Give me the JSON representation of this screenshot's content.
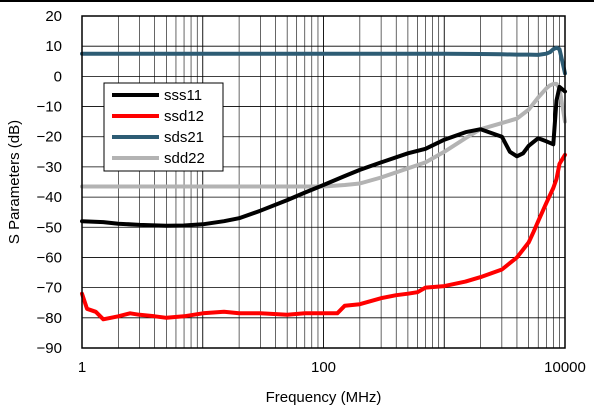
{
  "chart_data": {
    "type": "line",
    "xlabel": "Frequency (MHz)",
    "ylabel": "S Parameters (dB)",
    "xscale": "log",
    "xlim": [
      1,
      10000
    ],
    "ylim": [
      -90,
      20
    ],
    "x_ticks": [
      1,
      100,
      10000
    ],
    "x_tick_labels": [
      "1",
      "100",
      "10000"
    ],
    "y_ticks": [
      20,
      10,
      0,
      -10,
      -20,
      -30,
      -40,
      -50,
      -60,
      -70,
      -80,
      -90
    ],
    "y_tick_labels": [
      "20",
      "10",
      "0",
      "−10",
      "−20",
      "−30",
      "−40",
      "−50",
      "−60",
      "−70",
      "−80",
      "−90"
    ],
    "grid": true,
    "legend_position": "upper-left",
    "series": [
      {
        "name": "sss11",
        "color": "#000000",
        "x": [
          1,
          1.5,
          2,
          3,
          5,
          7,
          10,
          15,
          20,
          30,
          50,
          70,
          100,
          150,
          200,
          300,
          500,
          700,
          1000,
          1500,
          2000,
          3000,
          3500,
          4000,
          4500,
          5000,
          6000,
          7000,
          8000,
          8500,
          9000,
          10000
        ],
        "values": [
          -48,
          -48.3,
          -48.8,
          -49.2,
          -49.5,
          -49.4,
          -49,
          -48,
          -47,
          -44.5,
          -41,
          -38.5,
          -36,
          -33,
          -31,
          -28.5,
          -25.5,
          -24,
          -21,
          -18.5,
          -17.5,
          -20,
          -25,
          -26.5,
          -25.5,
          -23,
          -20.5,
          -21.5,
          -22.5,
          -8,
          -3.5,
          -5
        ]
      },
      {
        "name": "ssd12",
        "color": "#ff0000",
        "x": [
          1,
          1.1,
          1.3,
          1.5,
          2,
          2.5,
          3,
          4,
          5,
          7,
          10,
          15,
          20,
          30,
          50,
          70,
          100,
          130,
          150,
          200,
          300,
          400,
          500,
          600,
          700,
          1000,
          1500,
          2000,
          3000,
          4000,
          5000,
          5500,
          6000,
          7000,
          8000,
          8500,
          9000,
          10000
        ],
        "values": [
          -72,
          -77,
          -78,
          -80.5,
          -79.5,
          -78.5,
          -79,
          -79.5,
          -80,
          -79.5,
          -78.5,
          -78,
          -78.5,
          -78.5,
          -79,
          -78.5,
          -78.5,
          -78.5,
          -76,
          -75.5,
          -73.5,
          -72.5,
          -72,
          -71.5,
          -70,
          -69.5,
          -68,
          -66.5,
          -64,
          -60,
          -55,
          -51.5,
          -48,
          -42,
          -37,
          -34,
          -29,
          -26
        ]
      },
      {
        "name": "sds21",
        "color": "#2d5c74",
        "x": [
          1,
          10,
          100,
          1000,
          2000,
          3000,
          4000,
          5000,
          6000,
          7000,
          7500,
          8000,
          8500,
          9000,
          9500,
          10000
        ],
        "values": [
          7.5,
          7.5,
          7.5,
          7.5,
          7.4,
          7.3,
          7.2,
          7.2,
          7.1,
          7.5,
          8,
          9,
          9.5,
          9,
          5,
          1
        ]
      },
      {
        "name": "sdd22",
        "color": "#b3b3b3",
        "x": [
          1,
          10,
          50,
          100,
          150,
          200,
          300,
          500,
          700,
          1000,
          1500,
          2000,
          3000,
          4000,
          5000,
          6000,
          7000,
          7500,
          8000,
          8500,
          9000,
          10000
        ],
        "values": [
          -36.5,
          -36.5,
          -36.5,
          -36.5,
          -36,
          -35.5,
          -33.5,
          -30.5,
          -28.5,
          -25,
          -20.5,
          -17.5,
          -15.5,
          -14,
          -11,
          -7,
          -4,
          -3,
          -2.5,
          -2.5,
          -4,
          -15
        ]
      }
    ]
  }
}
